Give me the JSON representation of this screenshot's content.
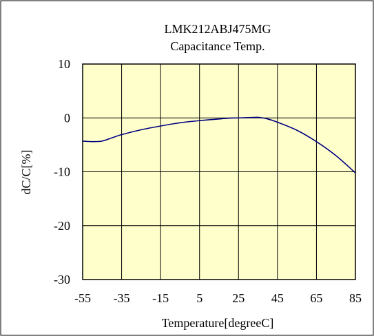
{
  "chart_data": {
    "type": "line",
    "title": "LMK212ABJ475MG",
    "subtitle": "Capacitance Temp.",
    "xlabel": "Temperature[degreeC]",
    "ylabel": "dC/C[%]",
    "xlim": [
      -55,
      85
    ],
    "ylim": [
      -30,
      10
    ],
    "x_ticks": [
      -55,
      -35,
      -15,
      5,
      25,
      45,
      65,
      85
    ],
    "y_ticks": [
      10,
      0,
      -10,
      -20,
      -30
    ],
    "grid": true,
    "legend": "none",
    "colors": {
      "plot_background": "#FFFFCC",
      "line": "#000080",
      "grid": "#000000"
    },
    "series": [
      {
        "x": [
          -55,
          -50,
          -45,
          -40,
          -35,
          -25,
          -15,
          -5,
          5,
          15,
          20,
          25,
          30,
          35,
          40,
          45,
          55,
          65,
          75,
          85
        ],
        "y": [
          -4.3,
          -4.4,
          -4.3,
          -3.7,
          -3.1,
          -2.2,
          -1.5,
          -0.9,
          -0.5,
          -0.2,
          -0.05,
          0.0,
          0.05,
          0.1,
          -0.2,
          -0.8,
          -2.3,
          -4.4,
          -7.0,
          -10.2
        ]
      }
    ]
  }
}
